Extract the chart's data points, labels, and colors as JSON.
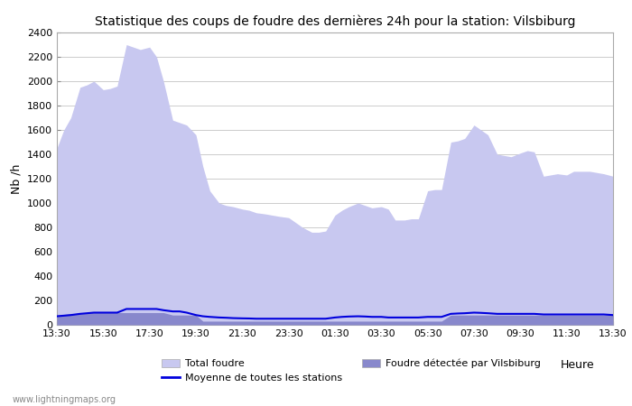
{
  "title": "Statistique des coups de foudre des dernières 24h pour la station: Vilsbiburg",
  "xlabel": "Heure",
  "ylabel": "Nb /h",
  "xlim": [
    0,
    24
  ],
  "ylim": [
    0,
    2400
  ],
  "yticks": [
    0,
    200,
    400,
    600,
    800,
    1000,
    1200,
    1400,
    1600,
    1800,
    2000,
    2200,
    2400
  ],
  "xtick_labels": [
    "13:30",
    "15:30",
    "17:30",
    "19:30",
    "21:30",
    "23:30",
    "01:30",
    "03:30",
    "05:30",
    "07:30",
    "09:30",
    "11:30",
    "13:30"
  ],
  "xtick_positions": [
    0,
    2,
    4,
    6,
    8,
    10,
    12,
    14,
    16,
    18,
    20,
    22,
    24
  ],
  "total_color": "#c8c8f0",
  "vilsbiburg_color": "#8888cc",
  "moyenne_color": "#0000dd",
  "watermark": "www.lightningmaps.org",
  "total_x": [
    0,
    0.3,
    0.6,
    1,
    1.3,
    1.6,
    2,
    2.3,
    2.6,
    3,
    3.3,
    3.6,
    4,
    4.3,
    4.6,
    5,
    5.3,
    5.6,
    6,
    6.3,
    6.6,
    7,
    7.3,
    7.6,
    8,
    8.3,
    8.6,
    9,
    9.3,
    9.6,
    10,
    10.3,
    10.6,
    11,
    11.3,
    11.6,
    12,
    12.3,
    12.6,
    13,
    13.3,
    13.6,
    14,
    14.3,
    14.6,
    15,
    15.3,
    15.6,
    16,
    16.3,
    16.6,
    17,
    17.3,
    17.6,
    18,
    18.3,
    18.6,
    19,
    19.3,
    19.6,
    20,
    20.3,
    20.6,
    21,
    21.3,
    21.6,
    22,
    22.3,
    22.6,
    23,
    23.3,
    23.6,
    24
  ],
  "total_y": [
    1450,
    1600,
    1700,
    1950,
    1970,
    2000,
    1930,
    1940,
    1960,
    2300,
    2280,
    2260,
    2280,
    2200,
    2000,
    1680,
    1660,
    1640,
    1560,
    1300,
    1100,
    1000,
    980,
    970,
    950,
    940,
    920,
    910,
    900,
    890,
    880,
    840,
    800,
    760,
    760,
    770,
    900,
    940,
    970,
    1000,
    980,
    960,
    970,
    950,
    860,
    860,
    870,
    870,
    1100,
    1110,
    1110,
    1500,
    1510,
    1530,
    1640,
    1600,
    1560,
    1400,
    1390,
    1380,
    1410,
    1430,
    1420,
    1220,
    1230,
    1240,
    1230,
    1260,
    1260,
    1260,
    1250,
    1240,
    1220
  ],
  "vilsbiburg_x": [
    0,
    0.3,
    0.6,
    1,
    1.3,
    1.6,
    2,
    2.3,
    2.6,
    3,
    3.3,
    3.6,
    4,
    4.3,
    4.6,
    5,
    5.3,
    5.6,
    6,
    6.3,
    6.6,
    7,
    7.3,
    7.6,
    8,
    8.3,
    8.6,
    9,
    9.3,
    9.6,
    10,
    10.3,
    10.6,
    11,
    11.3,
    11.6,
    12,
    12.3,
    12.6,
    13,
    13.3,
    13.6,
    14,
    14.3,
    14.6,
    15,
    15.3,
    15.6,
    16,
    16.3,
    16.6,
    17,
    17.3,
    17.6,
    18,
    18.3,
    18.6,
    19,
    19.3,
    19.6,
    20,
    20.3,
    20.6,
    21,
    21.3,
    21.6,
    22,
    22.3,
    22.6,
    23,
    23.3,
    23.6,
    24
  ],
  "vilsbiburg_y": [
    80,
    85,
    90,
    95,
    100,
    100,
    100,
    100,
    100,
    100,
    100,
    100,
    100,
    100,
    100,
    80,
    80,
    80,
    80,
    30,
    30,
    30,
    30,
    30,
    30,
    30,
    30,
    30,
    30,
    30,
    30,
    30,
    30,
    30,
    30,
    30,
    30,
    30,
    30,
    30,
    30,
    30,
    30,
    30,
    30,
    30,
    30,
    30,
    30,
    30,
    30,
    80,
    80,
    80,
    80,
    80,
    80,
    80,
    80,
    80,
    80,
    80,
    80,
    80,
    80,
    80,
    80,
    80,
    80,
    80,
    80,
    80,
    80
  ],
  "moyenne_x": [
    0,
    0.3,
    0.6,
    1,
    1.3,
    1.6,
    2,
    2.3,
    2.6,
    3,
    3.3,
    3.6,
    4,
    4.3,
    4.6,
    5,
    5.3,
    5.6,
    6,
    6.3,
    6.6,
    7,
    7.3,
    7.6,
    8,
    8.3,
    8.6,
    9,
    9.3,
    9.6,
    10,
    10.3,
    10.6,
    11,
    11.3,
    11.6,
    12,
    12.3,
    12.6,
    13,
    13.3,
    13.6,
    14,
    14.3,
    14.6,
    15,
    15.3,
    15.6,
    16,
    16.3,
    16.6,
    17,
    17.3,
    17.6,
    18,
    18.3,
    18.6,
    19,
    19.3,
    19.6,
    20,
    20.3,
    20.6,
    21,
    21.3,
    21.6,
    22,
    22.3,
    22.6,
    23,
    23.3,
    23.6,
    24
  ],
  "moyenne_y": [
    70,
    75,
    80,
    90,
    95,
    100,
    100,
    100,
    100,
    130,
    130,
    130,
    130,
    130,
    120,
    110,
    110,
    100,
    80,
    70,
    65,
    60,
    58,
    55,
    53,
    52,
    50,
    50,
    50,
    50,
    50,
    50,
    50,
    50,
    50,
    50,
    60,
    65,
    68,
    70,
    68,
    65,
    65,
    60,
    60,
    60,
    60,
    60,
    65,
    65,
    65,
    90,
    93,
    95,
    100,
    98,
    95,
    90,
    90,
    90,
    90,
    90,
    90,
    85,
    85,
    85,
    85,
    85,
    85,
    85,
    85,
    85,
    80
  ]
}
